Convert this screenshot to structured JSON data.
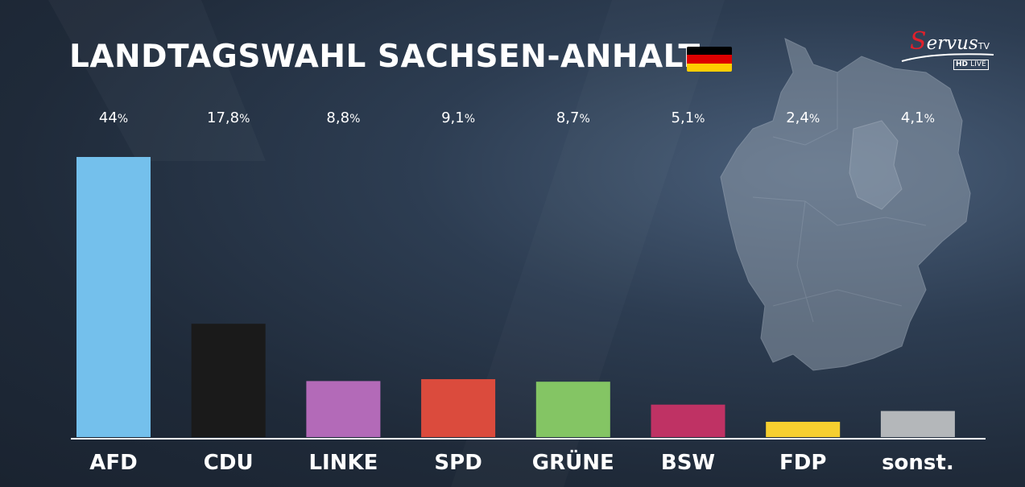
{
  "header": {
    "title": "LANDTAGSWAHL SACHSEN-ANHALT",
    "flag_colors": [
      "#000000",
      "#dd0000",
      "#ffce00"
    ]
  },
  "logo": {
    "brand_initial": "S",
    "brand_rest": "ervus",
    "brand_suffix": "TV",
    "badge_hd": "HD",
    "badge_live": "LIVE"
  },
  "chart_data": {
    "type": "bar",
    "categories": [
      "AFD",
      "CDU",
      "LINKE",
      "SPD",
      "GRÜNE",
      "BSW",
      "FDP",
      "sonst."
    ],
    "values": [
      44,
      17.8,
      8.8,
      9.1,
      8.7,
      5.1,
      2.4,
      4.1
    ],
    "value_labels": [
      "44%",
      "17,8%",
      "8,8%",
      "9,1%",
      "8,7%",
      "5,1%",
      "2,4%",
      "4,1%"
    ],
    "colors": [
      "#74c0ec",
      "#1a1a1a",
      "#b36ab8",
      "#db4b3d",
      "#84c564",
      "#bf3264",
      "#f6cf2f",
      "#b4b7ba"
    ],
    "title": "LANDTAGSWAHL SACHSEN-ANHALT",
    "xlabel": "",
    "ylabel": "",
    "ylim": [
      0,
      44
    ],
    "grid": false,
    "legend": "none"
  }
}
